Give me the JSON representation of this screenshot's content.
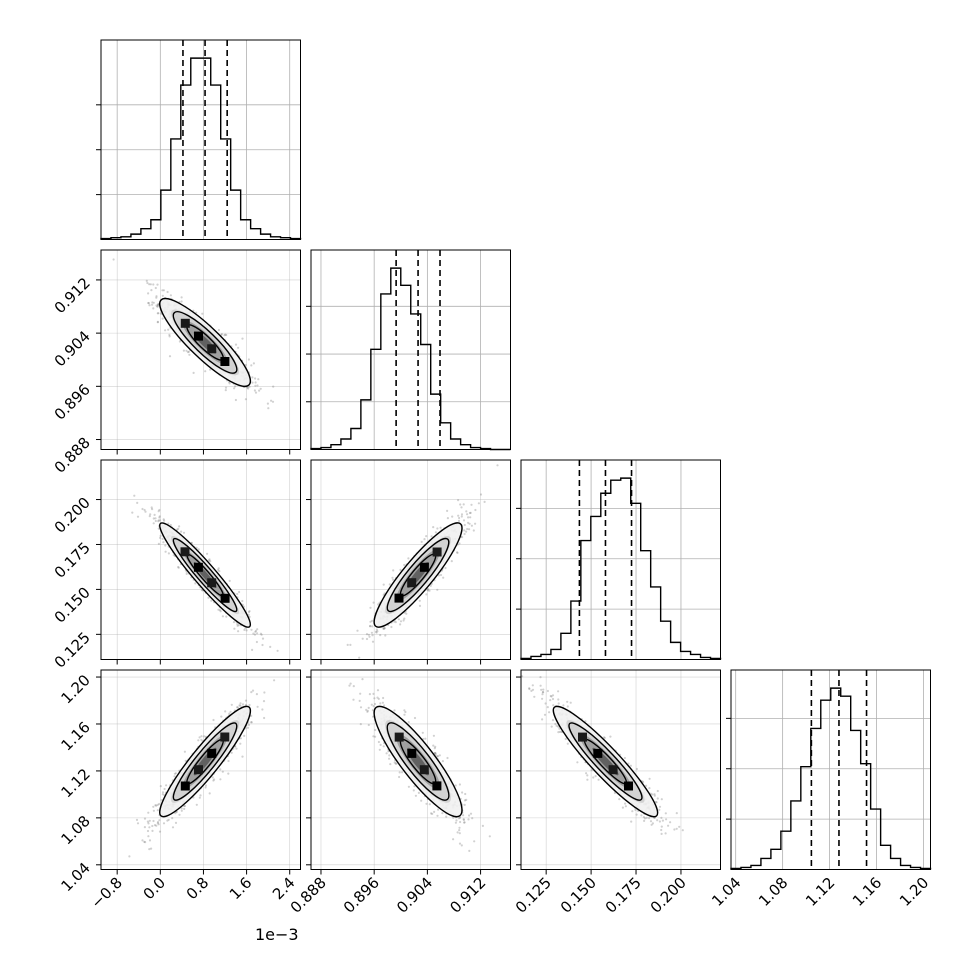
{
  "chart_data": {
    "type": "corner",
    "params": [
      {
        "range": [
          -1.1,
          2.6
        ],
        "ticks": [
          -0.8,
          0.0,
          0.8,
          1.6,
          2.4
        ],
        "tick_labels": [
          "−0.8",
          "0.0",
          "0.8",
          "1.6",
          "2.4"
        ],
        "offset_label": "1e−3",
        "mean": 0.83,
        "sd": 0.42,
        "quantiles": [
          0.42,
          0.83,
          1.24
        ],
        "hist_counts": [
          1,
          2,
          3,
          6,
          12,
          22,
          55,
          112,
          172,
          202,
          202,
          172,
          112,
          55,
          22,
          12,
          6,
          3,
          2,
          1
        ],
        "hist_ticks": [
          50,
          100,
          150
        ]
      },
      {
        "range": [
          0.8865,
          0.9165
        ],
        "ticks": [
          0.888,
          0.896,
          0.904,
          0.912
        ],
        "tick_labels": [
          "0.888",
          "0.896",
          "0.904",
          "0.912"
        ],
        "mean": 0.9026,
        "sd": 0.0033,
        "quantiles": [
          0.8993,
          0.9026,
          0.9059
        ],
        "hist_counts": [
          1,
          2,
          5,
          11,
          22,
          52,
          105,
          163,
          190,
          172,
          142,
          110,
          58,
          28,
          11,
          5,
          2,
          1,
          0,
          0
        ],
        "hist_ticks": [
          50,
          100,
          150
        ]
      },
      {
        "range": [
          0.111,
          0.222
        ],
        "ticks": [
          0.125,
          0.15,
          0.175,
          0.2
        ],
        "tick_labels": [
          "0.125",
          "0.150",
          "0.175",
          "0.200"
        ],
        "mean": 0.158,
        "sd": 0.0145,
        "quantiles": [
          0.1435,
          0.158,
          0.1725
        ],
        "hist_counts": [
          1,
          3,
          5,
          10,
          26,
          58,
          118,
          142,
          165,
          178,
          180,
          155,
          108,
          72,
          38,
          17,
          8,
          5,
          2,
          1
        ],
        "hist_ticks": [
          50,
          100,
          150
        ]
      },
      {
        "range": [
          1.036,
          1.206
        ],
        "ticks": [
          1.04,
          1.08,
          1.12,
          1.16,
          1.2
        ],
        "tick_labels": [
          "1.04",
          "1.08",
          "1.12",
          "1.16",
          "1.20"
        ],
        "mean": 1.128,
        "sd": 0.0235,
        "quantiles": [
          1.1045,
          1.128,
          1.1515
        ],
        "hist_counts": [
          1,
          2,
          4,
          11,
          20,
          38,
          68,
          102,
          140,
          168,
          180,
          172,
          138,
          105,
          60,
          24,
          11,
          4,
          2,
          1
        ],
        "hist_ticks": [
          50,
          100,
          150
        ]
      }
    ],
    "correlation": [
      [
        1.0,
        -0.88,
        -0.95,
        0.92
      ],
      [
        -0.88,
        1.0,
        0.9,
        -0.88
      ],
      [
        -0.95,
        0.9,
        1.0,
        -0.93
      ],
      [
        0.92,
        -0.88,
        -0.93,
        1.0
      ]
    ],
    "contour_levels_sigma": [
      0.5,
      1.0,
      1.5,
      2.0
    ],
    "grid": true,
    "colors": {
      "line": "#000000",
      "scatter": "#7a7a7a",
      "fill": "#444444",
      "grid": "#b0b0b0"
    }
  }
}
